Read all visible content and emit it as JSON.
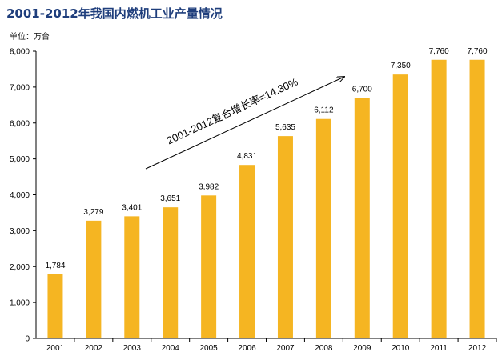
{
  "title": "2001-2012年我国内燃机工业产量情况",
  "unit_label": "单位：万台",
  "colors": {
    "bar": "#F5B522",
    "title": "#1F3E7C",
    "axis": "#000000"
  },
  "chart_data": {
    "type": "bar",
    "categories": [
      "2001",
      "2002",
      "2003",
      "2004",
      "2005",
      "2006",
      "2007",
      "2008",
      "2009",
      "2010",
      "2011",
      "2012"
    ],
    "values": [
      1784,
      3279,
      3401,
      3651,
      3982,
      4831,
      5635,
      6112,
      6700,
      7350,
      7760,
      7760
    ],
    "value_labels": [
      "1,784",
      "3,279",
      "3,401",
      "3,651",
      "3,982",
      "4,831",
      "5,635",
      "6,112",
      "6,700",
      "7,350",
      "7,760",
      "7,760"
    ],
    "ylim": [
      0,
      8000
    ],
    "yticks": [
      0,
      1000,
      2000,
      3000,
      4000,
      5000,
      6000,
      7000,
      8000
    ],
    "ytick_labels": [
      "0",
      "1,000",
      "2,000",
      "3,000",
      "4,000",
      "5,000",
      "6,000",
      "7,000",
      "8,000"
    ],
    "annotation": "2001-2012复合增长率=14.30%",
    "grid": false,
    "legend": "none"
  }
}
